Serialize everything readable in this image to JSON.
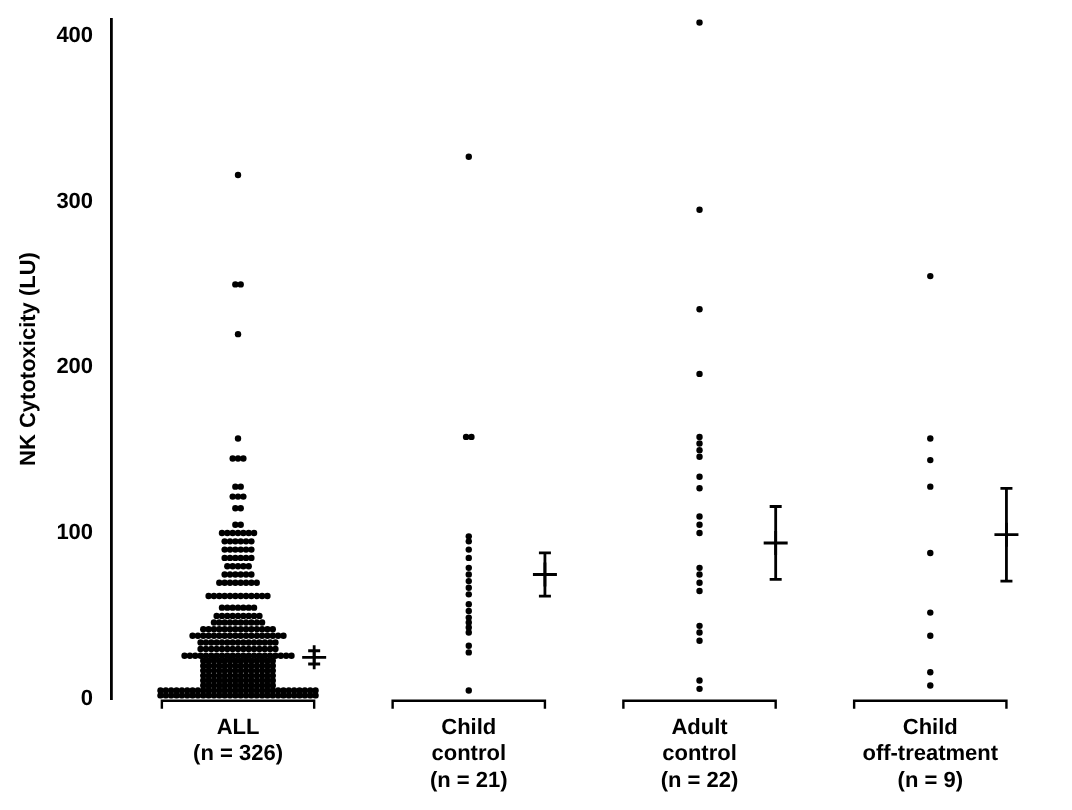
{
  "chart_data": {
    "type": "scatter",
    "ylabel": "NK Cytotoxicity (LU)",
    "categories": [
      "ALL\n(n = 326)",
      "Child\ncontrol\n(n = 21)",
      "Adult\ncontrol\n(n = 22)",
      "Child\noff-treatment\n(n = 9)"
    ],
    "ylim": [
      0,
      410
    ],
    "yticks": [
      0,
      100,
      200,
      300,
      400
    ],
    "grid": false,
    "legend": false,
    "series": [
      {
        "color": "#000000",
        "marker": "circle",
        "x": [
          "ALL\n(n = 326)",
          "ALL\n(n = 326)",
          "ALL\n(n = 326)",
          "ALL\n(n = 326)",
          "ALL\n(n = 326)",
          "ALL\n(n = 326)",
          "ALL\n(n = 326)",
          "ALL\n(n = 326)",
          "ALL\n(n = 326)",
          "ALL\n(n = 326)",
          "ALL\n(n = 326)",
          "ALL\n(n = 326)",
          "ALL\n(n = 326)",
          "ALL\n(n = 326)",
          "ALL\n(n = 326)",
          "ALL\n(n = 326)",
          "ALL\n(n = 326)",
          "ALL\n(n = 326)",
          "ALL\n(n = 326)",
          "ALL\n(n = 326)",
          "ALL\n(n = 326)",
          "ALL\n(n = 326)",
          "ALL\n(n = 326)",
          "ALL\n(n = 326)",
          "ALL\n(n = 326)",
          "ALL\n(n = 326)",
          "ALL\n(n = 326)",
          "ALL\n(n = 326)",
          "ALL\n(n = 326)",
          "ALL\n(n = 326)",
          "ALL\n(n = 326)",
          "ALL\n(n = 326)",
          "ALL\n(n = 326)",
          "ALL\n(n = 326)",
          "ALL\n(n = 326)",
          "ALL\n(n = 326)",
          "ALL\n(n = 326)",
          "ALL\n(n = 326)",
          "ALL\n(n = 326)",
          "ALL\n(n = 326)",
          "ALL\n(n = 326)",
          "ALL\n(n = 326)",
          "ALL\n(n = 326)",
          "ALL\n(n = 326)",
          "ALL\n(n = 326)",
          "ALL\n(n = 326)",
          "ALL\n(n = 326)",
          "ALL\n(n = 326)",
          "ALL\n(n = 326)",
          "ALL\n(n = 326)",
          "ALL\n(n = 326)",
          "ALL\n(n = 326)",
          "ALL\n(n = 326)",
          "ALL\n(n = 326)",
          "ALL\n(n = 326)",
          "ALL\n(n = 326)",
          "ALL\n(n = 326)",
          "ALL\n(n = 326)",
          "ALL\n(n = 326)",
          "ALL\n(n = 326)",
          "ALL\n(n = 326)",
          "ALL\n(n = 326)",
          "ALL\n(n = 326)",
          "ALL\n(n = 326)",
          "ALL\n(n = 326)",
          "ALL\n(n = 326)",
          "ALL\n(n = 326)",
          "ALL\n(n = 326)",
          "ALL\n(n = 326)",
          "ALL\n(n = 326)",
          "ALL\n(n = 326)",
          "ALL\n(n = 326)",
          "ALL\n(n = 326)",
          "ALL\n(n = 326)",
          "ALL\n(n = 326)",
          "ALL\n(n = 326)",
          "ALL\n(n = 326)",
          "ALL\n(n = 326)",
          "ALL\n(n = 326)",
          "ALL\n(n = 326)",
          "ALL\n(n = 326)",
          "ALL\n(n = 326)",
          "ALL\n(n = 326)",
          "ALL\n(n = 326)",
          "ALL\n(n = 326)",
          "ALL\n(n = 326)",
          "ALL\n(n = 326)",
          "ALL\n(n = 326)",
          "ALL\n(n = 326)",
          "ALL\n(n = 326)",
          "ALL\n(n = 326)",
          "ALL\n(n = 326)",
          "ALL\n(n = 326)",
          "ALL\n(n = 326)",
          "ALL\n(n = 326)",
          "ALL\n(n = 326)",
          "ALL\n(n = 326)",
          "ALL\n(n = 326)",
          "ALL\n(n = 326)",
          "ALL\n(n = 326)",
          "ALL\n(n = 326)",
          "ALL\n(n = 326)",
          "ALL\n(n = 326)",
          "ALL\n(n = 326)",
          "ALL\n(n = 326)",
          "ALL\n(n = 326)",
          "ALL\n(n = 326)",
          "ALL\n(n = 326)",
          "ALL\n(n = 326)",
          "ALL\n(n = 326)",
          "ALL\n(n = 326)",
          "ALL\n(n = 326)",
          "ALL\n(n = 326)",
          "ALL\n(n = 326)",
          "ALL\n(n = 326)",
          "ALL\n(n = 326)",
          "ALL\n(n = 326)",
          "ALL\n(n = 326)",
          "ALL\n(n = 326)",
          "ALL\n(n = 326)",
          "ALL\n(n = 326)",
          "ALL\n(n = 326)",
          "ALL\n(n = 326)",
          "ALL\n(n = 326)",
          "ALL\n(n = 326)",
          "ALL\n(n = 326)",
          "ALL\n(n = 326)",
          "ALL\n(n = 326)",
          "ALL\n(n = 326)",
          "ALL\n(n = 326)",
          "ALL\n(n = 326)",
          "ALL\n(n = 326)",
          "ALL\n(n = 326)",
          "ALL\n(n = 326)",
          "ALL\n(n = 326)",
          "ALL\n(n = 326)",
          "ALL\n(n = 326)",
          "ALL\n(n = 326)",
          "ALL\n(n = 326)",
          "ALL\n(n = 326)",
          "ALL\n(n = 326)",
          "ALL\n(n = 326)",
          "ALL\n(n = 326)",
          "ALL\n(n = 326)",
          "ALL\n(n = 326)",
          "ALL\n(n = 326)",
          "ALL\n(n = 326)",
          "ALL\n(n = 326)",
          "ALL\n(n = 326)",
          "ALL\n(n = 326)",
          "ALL\n(n = 326)",
          "ALL\n(n = 326)",
          "ALL\n(n = 326)",
          "ALL\n(n = 326)",
          "ALL\n(n = 326)",
          "ALL\n(n = 326)",
          "ALL\n(n = 326)",
          "ALL\n(n = 326)",
          "ALL\n(n = 326)",
          "ALL\n(n = 326)",
          "ALL\n(n = 326)",
          "ALL\n(n = 326)",
          "ALL\n(n = 326)",
          "ALL\n(n = 326)",
          "ALL\n(n = 326)",
          "ALL\n(n = 326)",
          "ALL\n(n = 326)",
          "ALL\n(n = 326)",
          "ALL\n(n = 326)",
          "ALL\n(n = 326)",
          "ALL\n(n = 326)",
          "ALL\n(n = 326)",
          "ALL\n(n = 326)",
          "ALL\n(n = 326)",
          "ALL\n(n = 326)",
          "ALL\n(n = 326)",
          "ALL\n(n = 326)",
          "ALL\n(n = 326)",
          "ALL\n(n = 326)",
          "ALL\n(n = 326)",
          "ALL\n(n = 326)",
          "ALL\n(n = 326)",
          "ALL\n(n = 326)",
          "ALL\n(n = 326)",
          "ALL\n(n = 326)",
          "ALL\n(n = 326)",
          "ALL\n(n = 326)",
          "ALL\n(n = 326)",
          "ALL\n(n = 326)",
          "ALL\n(n = 326)",
          "ALL\n(n = 326)",
          "ALL\n(n = 326)",
          "ALL\n(n = 326)",
          "ALL\n(n = 326)",
          "ALL\n(n = 326)",
          "ALL\n(n = 326)",
          "ALL\n(n = 326)",
          "ALL\n(n = 326)",
          "ALL\n(n = 326)",
          "ALL\n(n = 326)",
          "ALL\n(n = 326)",
          "ALL\n(n = 326)",
          "ALL\n(n = 326)",
          "ALL\n(n = 326)",
          "ALL\n(n = 326)",
          "ALL\n(n = 326)",
          "ALL\n(n = 326)",
          "ALL\n(n = 326)",
          "ALL\n(n = 326)",
          "ALL\n(n = 326)",
          "ALL\n(n = 326)",
          "ALL\n(n = 326)",
          "ALL\n(n = 326)",
          "ALL\n(n = 326)",
          "ALL\n(n = 326)",
          "ALL\n(n = 326)",
          "ALL\n(n = 326)",
          "ALL\n(n = 326)",
          "ALL\n(n = 326)",
          "ALL\n(n = 326)",
          "ALL\n(n = 326)",
          "ALL\n(n = 326)",
          "ALL\n(n = 326)",
          "ALL\n(n = 326)",
          "ALL\n(n = 326)",
          "ALL\n(n = 326)",
          "ALL\n(n = 326)",
          "ALL\n(n = 326)",
          "ALL\n(n = 326)",
          "ALL\n(n = 326)",
          "ALL\n(n = 326)",
          "ALL\n(n = 326)",
          "ALL\n(n = 326)",
          "ALL\n(n = 326)",
          "ALL\n(n = 326)",
          "ALL\n(n = 326)",
          "ALL\n(n = 326)",
          "ALL\n(n = 326)",
          "ALL\n(n = 326)",
          "ALL\n(n = 326)",
          "ALL\n(n = 326)",
          "ALL\n(n = 326)",
          "ALL\n(n = 326)",
          "ALL\n(n = 326)",
          "ALL\n(n = 326)",
          "ALL\n(n = 326)",
          "ALL\n(n = 326)",
          "ALL\n(n = 326)",
          "ALL\n(n = 326)",
          "ALL\n(n = 326)",
          "ALL\n(n = 326)",
          "ALL\n(n = 326)",
          "ALL\n(n = 326)",
          "ALL\n(n = 326)",
          "ALL\n(n = 326)",
          "ALL\n(n = 326)",
          "ALL\n(n = 326)",
          "ALL\n(n = 326)",
          "ALL\n(n = 326)",
          "ALL\n(n = 326)",
          "ALL\n(n = 326)",
          "ALL\n(n = 326)",
          "ALL\n(n = 326)",
          "ALL\n(n = 326)",
          "ALL\n(n = 326)",
          "ALL\n(n = 326)",
          "ALL\n(n = 326)",
          "ALL\n(n = 326)",
          "ALL\n(n = 326)",
          "ALL\n(n = 326)",
          "ALL\n(n = 326)",
          "ALL\n(n = 326)",
          "ALL\n(n = 326)",
          "ALL\n(n = 326)",
          "ALL\n(n = 326)",
          "ALL\n(n = 326)",
          "ALL\n(n = 326)",
          "ALL\n(n = 326)",
          "ALL\n(n = 326)",
          "ALL\n(n = 326)",
          "ALL\n(n = 326)",
          "ALL\n(n = 326)",
          "ALL\n(n = 326)",
          "ALL\n(n = 326)",
          "ALL\n(n = 326)",
          "ALL\n(n = 326)",
          "ALL\n(n = 326)",
          "ALL\n(n = 326)",
          "ALL\n(n = 326)",
          "ALL\n(n = 326)",
          "ALL\n(n = 326)",
          "ALL\n(n = 326)",
          "ALL\n(n = 326)",
          "ALL\n(n = 326)",
          "ALL\n(n = 326)",
          "ALL\n(n = 326)",
          "ALL\n(n = 326)",
          "ALL\n(n = 326)",
          "ALL\n(n = 326)",
          "ALL\n(n = 326)",
          "ALL\n(n = 326)",
          "ALL\n(n = 326)",
          "ALL\n(n = 326)",
          "ALL\n(n = 326)",
          "ALL\n(n = 326)",
          "ALL\n(n = 326)",
          "ALL\n(n = 326)",
          "ALL\n(n = 326)",
          "ALL\n(n = 326)",
          "ALL\n(n = 326)",
          "ALL\n(n = 326)",
          "ALL\n(n = 326)",
          "ALL\n(n = 326)",
          "ALL\n(n = 326)",
          "ALL\n(n = 326)",
          "ALL\n(n = 326)",
          "ALL\n(n = 326)",
          "ALL\n(n = 326)",
          "ALL\n(n = 326)",
          "ALL\n(n = 326)",
          "ALL\n(n = 326)",
          "ALL\n(n = 326)",
          "ALL\n(n = 326)",
          "ALL\n(n = 326)",
          "ALL\n(n = 326)",
          "ALL\n(n = 326)"
        ],
        "values": [
          2,
          2,
          2,
          2,
          2,
          2,
          2,
          2,
          2,
          2,
          2,
          2,
          2,
          2,
          2,
          2,
          2,
          2,
          2,
          2,
          2,
          2,
          2,
          2,
          2,
          2,
          2,
          2,
          2,
          2,
          5,
          5,
          5,
          5,
          5,
          5,
          5,
          5,
          5,
          5,
          5,
          5,
          5,
          5,
          5,
          5,
          5,
          5,
          5,
          5,
          5,
          5,
          5,
          5,
          5,
          5,
          5,
          5,
          5,
          5,
          8,
          8,
          8,
          8,
          8,
          8,
          8,
          8,
          8,
          8,
          8,
          8,
          8,
          8,
          11,
          11,
          11,
          11,
          11,
          11,
          11,
          11,
          11,
          11,
          11,
          11,
          11,
          11,
          14,
          14,
          14,
          14,
          14,
          14,
          14,
          14,
          14,
          14,
          14,
          14,
          14,
          14,
          17,
          17,
          17,
          17,
          17,
          17,
          17,
          17,
          17,
          17,
          17,
          17,
          17,
          17,
          20,
          20,
          20,
          20,
          20,
          20,
          20,
          20,
          20,
          20,
          20,
          20,
          20,
          20,
          23,
          23,
          23,
          23,
          23,
          23,
          23,
          23,
          23,
          23,
          23,
          23,
          23,
          23,
          26,
          26,
          26,
          26,
          26,
          26,
          26,
          26,
          26,
          26,
          26,
          26,
          26,
          26,
          26,
          26,
          26,
          26,
          26,
          26,
          26,
          30,
          30,
          30,
          30,
          30,
          30,
          30,
          30,
          30,
          30,
          30,
          30,
          30,
          30,
          30,
          34,
          34,
          34,
          34,
          34,
          34,
          34,
          34,
          34,
          34,
          34,
          34,
          34,
          34,
          34,
          38,
          38,
          38,
          38,
          38,
          38,
          38,
          38,
          38,
          38,
          38,
          38,
          38,
          38,
          38,
          38,
          38,
          38,
          42,
          42,
          42,
          42,
          42,
          42,
          42,
          42,
          42,
          42,
          42,
          42,
          42,
          42,
          46,
          46,
          46,
          46,
          46,
          46,
          46,
          46,
          46,
          46,
          50,
          50,
          50,
          50,
          50,
          50,
          50,
          50,
          50,
          55,
          55,
          55,
          55,
          55,
          55,
          55,
          62,
          62,
          62,
          62,
          62,
          62,
          62,
          62,
          62,
          62,
          62,
          62,
          70,
          70,
          70,
          70,
          70,
          70,
          70,
          70,
          75,
          75,
          75,
          75,
          75,
          75,
          80,
          80,
          80,
          80,
          80,
          85,
          85,
          85,
          85,
          85,
          85,
          90,
          90,
          90,
          90,
          90,
          90,
          95,
          95,
          95,
          95,
          95,
          95,
          100,
          100,
          100,
          100,
          100,
          100,
          100,
          105,
          105,
          115,
          115,
          122,
          122,
          122,
          128,
          128,
          145,
          145,
          145,
          157,
          220,
          250,
          250,
          316
        ]
      },
      {
        "color": "#000000",
        "marker": "circle",
        "x": [
          "Child\ncontrol\n(n = 21)",
          "Child\ncontrol\n(n = 21)",
          "Child\ncontrol\n(n = 21)",
          "Child\ncontrol\n(n = 21)",
          "Child\ncontrol\n(n = 21)",
          "Child\ncontrol\n(n = 21)",
          "Child\ncontrol\n(n = 21)",
          "Child\ncontrol\n(n = 21)",
          "Child\ncontrol\n(n = 21)",
          "Child\ncontrol\n(n = 21)",
          "Child\ncontrol\n(n = 21)",
          "Child\ncontrol\n(n = 21)",
          "Child\ncontrol\n(n = 21)",
          "Child\ncontrol\n(n = 21)",
          "Child\ncontrol\n(n = 21)",
          "Child\ncontrol\n(n = 21)",
          "Child\ncontrol\n(n = 21)",
          "Child\ncontrol\n(n = 21)",
          "Child\ncontrol\n(n = 21)",
          "Child\ncontrol\n(n = 21)",
          "Child\ncontrol\n(n = 21)"
        ],
        "values": [
          327,
          158,
          158,
          98,
          95,
          90,
          85,
          79,
          75,
          71,
          67,
          63,
          57,
          53,
          49,
          46,
          43,
          40,
          32,
          28,
          5
        ]
      },
      {
        "color": "#000000",
        "marker": "circle",
        "x": [
          "Adult\ncontrol\n(n = 22)",
          "Adult\ncontrol\n(n = 22)",
          "Adult\ncontrol\n(n = 22)",
          "Adult\ncontrol\n(n = 22)",
          "Adult\ncontrol\n(n = 22)",
          "Adult\ncontrol\n(n = 22)",
          "Adult\ncontrol\n(n = 22)",
          "Adult\ncontrol\n(n = 22)",
          "Adult\ncontrol\n(n = 22)",
          "Adult\ncontrol\n(n = 22)",
          "Adult\ncontrol\n(n = 22)",
          "Adult\ncontrol\n(n = 22)",
          "Adult\ncontrol\n(n = 22)",
          "Adult\ncontrol\n(n = 22)",
          "Adult\ncontrol\n(n = 22)",
          "Adult\ncontrol\n(n = 22)",
          "Adult\ncontrol\n(n = 22)",
          "Adult\ncontrol\n(n = 22)",
          "Adult\ncontrol\n(n = 22)",
          "Adult\ncontrol\n(n = 22)",
          "Adult\ncontrol\n(n = 22)",
          "Adult\ncontrol\n(n = 22)"
        ],
        "values": [
          408,
          295,
          235,
          196,
          158,
          154,
          150,
          146,
          134,
          127,
          110,
          105,
          100,
          79,
          75,
          70,
          65,
          44,
          40,
          35,
          11,
          6
        ]
      },
      {
        "color": "#000000",
        "marker": "circle",
        "x": [
          "Child\noff-treatment\n(n = 9)",
          "Child\noff-treatment\n(n = 9)",
          "Child\noff-treatment\n(n = 9)",
          "Child\noff-treatment\n(n = 9)",
          "Child\noff-treatment\n(n = 9)",
          "Child\noff-treatment\n(n = 9)",
          "Child\noff-treatment\n(n = 9)",
          "Child\noff-treatment\n(n = 9)",
          "Child\noff-treatment\n(n = 9)"
        ],
        "values": [
          255,
          157,
          144,
          128,
          88,
          52,
          38,
          16,
          8
        ]
      },
      {
        "color": "#000000",
        "marker": "cross",
        "x": [
          "ALL\n(n = 326)",
          "Child\ncontrol\n(n = 21)",
          "Adult\ncontrol\n(n = 22)",
          "Child\noff-treatment\n(n = 9)"
        ],
        "values": [
          25,
          75,
          94,
          99
        ],
        "errors": [
          4,
          13,
          22,
          28
        ]
      }
    ]
  }
}
